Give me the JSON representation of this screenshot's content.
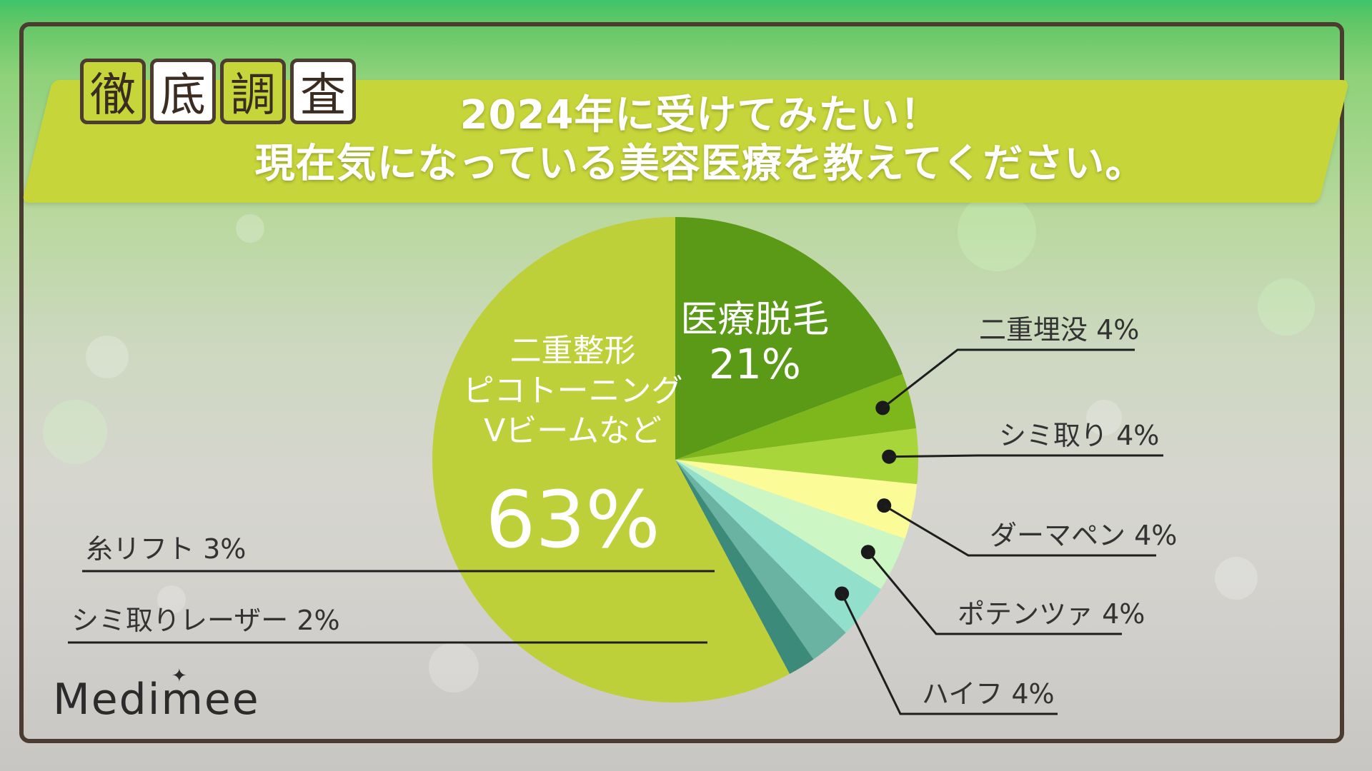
{
  "header": {
    "tags": [
      "徹",
      "底",
      "調",
      "査"
    ],
    "title_line1": "2024年に受けてみたい！",
    "title_line2": "現在気になっている美容医療を教えてください。"
  },
  "brand": {
    "logo": "Medimee",
    "logo_spark_icon": "sparkle-icon"
  },
  "colors": {
    "frame": "#4b3b31",
    "banner": "#c6d53a",
    "callout_text": "#333333",
    "slice_label_text": "#ffffff"
  },
  "chart_data": {
    "type": "pie",
    "title": "2024年に受けてみたい！現在気になっている美容医療を教えてください。",
    "start": "12 o'clock",
    "direction": "clockwise",
    "slices": [
      {
        "name": "医療脱毛",
        "value": 21,
        "percent_label": "21%",
        "color": "#5b9a17"
      },
      {
        "name": "二重埋没",
        "value": 4,
        "percent_label": "4%",
        "label": "二重埋没 4%",
        "color": "#7eb71b"
      },
      {
        "name": "シミ取り",
        "value": 4,
        "percent_label": "4%",
        "label": "シミ取り 4%",
        "color": "#a7d53a"
      },
      {
        "name": "ダーマペン",
        "value": 4,
        "percent_label": "4%",
        "label": "ダーマペン 4%",
        "color": "#fbfb98"
      },
      {
        "name": "ポテンツァ",
        "value": 4,
        "percent_label": "4%",
        "label": "ポテンツァ 4%",
        "color": "#ccf7c4"
      },
      {
        "name": "ハイフ",
        "value": 4,
        "percent_label": "4%",
        "label": "ハイフ 4%",
        "color": "#92e0cc"
      },
      {
        "name": "糸リフト",
        "value": 3,
        "percent_label": "3%",
        "label": "糸リフト 3%",
        "color": "#6ab3a3"
      },
      {
        "name": "シミ取りレーザー",
        "value": 2,
        "percent_label": "2%",
        "label": "シミ取りレーザー 2%",
        "color": "#3c8a79"
      },
      {
        "name": "二重整形 ピコトーニング Vビームなど",
        "value": 63,
        "percent_label": "63%",
        "label_lines": [
          "二重整形",
          "ピコトーニング",
          "Vビームなど"
        ],
        "color": "#bdd03a"
      }
    ],
    "main_label": {
      "name": "医療脱毛",
      "value": "21%"
    },
    "other_label": {
      "lines": [
        "二重整形",
        "ピコトーニング",
        "Vビームなど"
      ],
      "value": "63%"
    }
  }
}
